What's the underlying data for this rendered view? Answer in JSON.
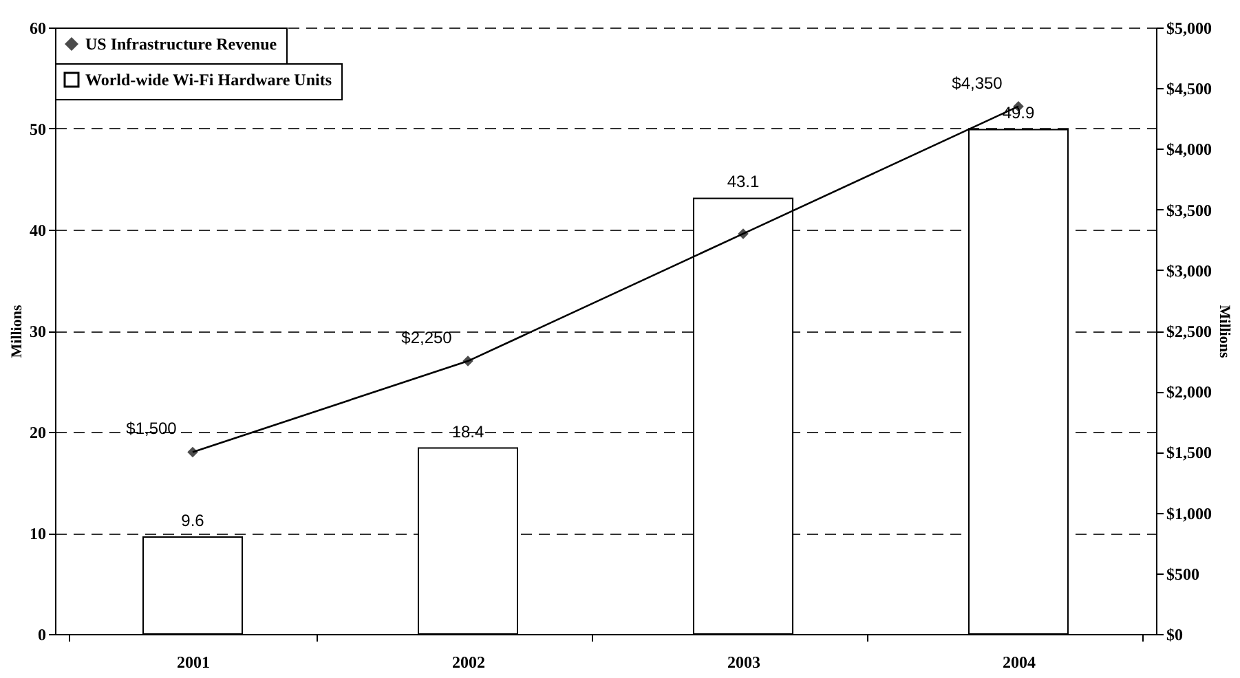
{
  "chart_data": {
    "type": "bar",
    "categories": [
      "2001",
      "2002",
      "2003",
      "2004"
    ],
    "ylabel": "Millions",
    "y2label": "Millions",
    "ylim": [
      0,
      60
    ],
    "yticks": [
      0,
      10,
      20,
      30,
      40,
      50,
      60
    ],
    "y2lim": [
      0,
      5000
    ],
    "y2ticks": [
      {
        "value": 0,
        "label": "$0"
      },
      {
        "value": 500,
        "label": "$500"
      },
      {
        "value": 1000,
        "label": "$1,000"
      },
      {
        "value": 1500,
        "label": "$1,500"
      },
      {
        "value": 2000,
        "label": "$2,000"
      },
      {
        "value": 2500,
        "label": "$2,500"
      },
      {
        "value": 3000,
        "label": "$3,000"
      },
      {
        "value": 3500,
        "label": "$3,500"
      },
      {
        "value": 4000,
        "label": "$4,000"
      },
      {
        "value": 4500,
        "label": "$4,500"
      },
      {
        "value": 5000,
        "label": "$5,000"
      }
    ],
    "grid": "y",
    "legend": "top left",
    "series": [
      {
        "name": "World-wide Wi-Fi Hardware Units",
        "color": "#ffffff",
        "values": [
          9.6,
          18.4,
          43.1,
          49.9
        ],
        "value_labels": [
          "9.6",
          "18.4",
          "43.1",
          "49.9"
        ]
      },
      {
        "name": "US Infrastructure Revenue",
        "type": "line",
        "axis": "y2",
        "color": "#000000",
        "marker": "diamond",
        "values": [
          1500,
          2250,
          3300,
          4350
        ],
        "value_labels": [
          "$1,500",
          "$2,250",
          null,
          "$4,350"
        ]
      }
    ]
  }
}
